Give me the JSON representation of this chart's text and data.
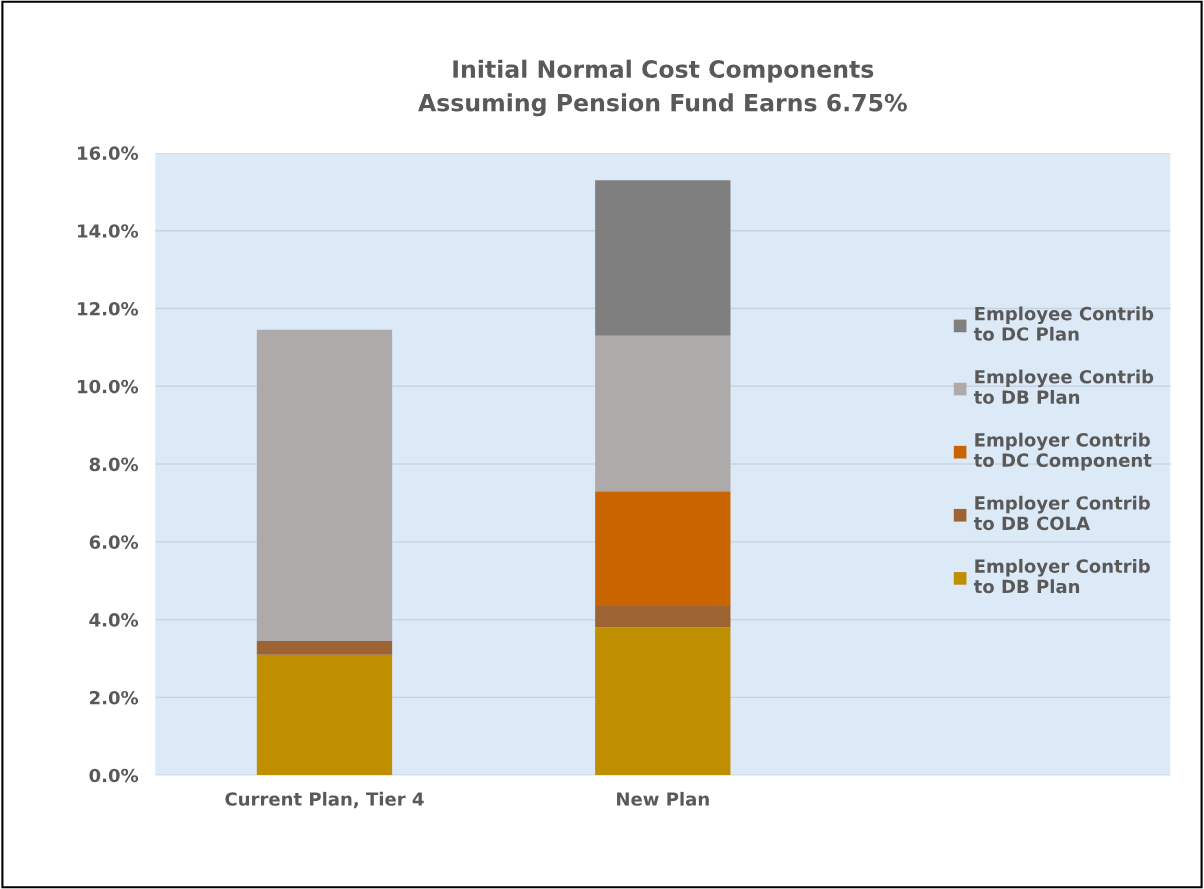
{
  "chart_data": {
    "type": "bar",
    "title": "Initial Normal Cost Components\nAssuming Pension Fund Earns 6.75%",
    "stacked": true,
    "categories": [
      "Current Plan, Tier 4",
      "New Plan"
    ],
    "series": [
      {
        "name": "Employer Contrib\nto DB Plan",
        "color": "#bf8f00",
        "values": [
          3.1,
          3.8
        ]
      },
      {
        "name": "Employer Contrib\nto DB COLA",
        "color": "#9e6333",
        "values": [
          0.35,
          0.55
        ]
      },
      {
        "name": "Employer Contrib\nto DC Component",
        "color": "#c96500",
        "values": [
          0,
          2.95
        ]
      },
      {
        "name": "Employee Contrib\nto DB Plan",
        "color": "#aeaaaa",
        "values": [
          8.0,
          4.0
        ]
      },
      {
        "name": "Employee Contrib\nto DC Plan",
        "color": "#7f7f7f",
        "values": [
          0,
          4.0
        ]
      }
    ],
    "ylim": [
      0,
      16
    ],
    "yticks": [
      {
        "value": 0,
        "label": "0.0%"
      },
      {
        "value": 2,
        "label": "2.0%"
      },
      {
        "value": 4,
        "label": "4.0%"
      },
      {
        "value": 6,
        "label": "6.0%"
      },
      {
        "value": 8,
        "label": "8.0%"
      },
      {
        "value": 10,
        "label": "10.0%"
      },
      {
        "value": 12,
        "label": "12.0%"
      },
      {
        "value": 14,
        "label": "14.0%"
      },
      {
        "value": 16,
        "label": "16.0%"
      }
    ],
    "grid": "y",
    "legend": "right"
  }
}
